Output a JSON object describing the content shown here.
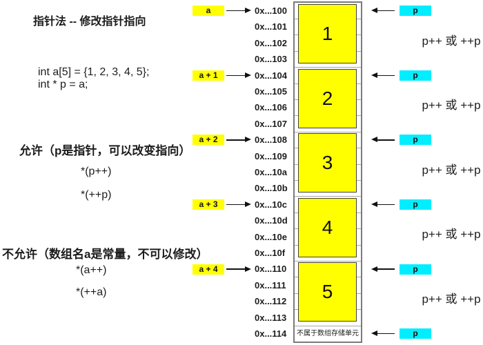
{
  "title": "指针法 -- 修改指针指向",
  "code": {
    "line1": "int  a[5] = {1, 2, 3, 4, 5};",
    "line2": "int * p = a;"
  },
  "allowed": {
    "heading": "允许（p是指针，可以改变指向）",
    "items": [
      "*(p++)",
      "*(++p)"
    ]
  },
  "not_allowed": {
    "heading": "不允许（数组名a是常量，不可以修改）",
    "items": [
      "*(a++)",
      "*(++a)"
    ]
  },
  "array_labels": [
    "a",
    "a + 1",
    "a + 2",
    "a + 3",
    "a + 4"
  ],
  "addresses": [
    "0x...100",
    "0x...101",
    "0x...102",
    "0x...103",
    "0x...104",
    "0x...105",
    "0x...106",
    "0x...107",
    "0x...108",
    "0x...109",
    "0x...10a",
    "0x...10b",
    "0x...10c",
    "0x...10d",
    "0x...10e",
    "0x...10f",
    "0x...110",
    "0x...111",
    "0x...112",
    "0x...113",
    "0x...114"
  ],
  "cell_values": [
    "1",
    "2",
    "3",
    "4",
    "5"
  ],
  "bottom_note": "不属于数组存储单元",
  "pointer_label": "p",
  "pointer_count": 6,
  "increment_label": "p++ 或 ++p",
  "increment_count": 5,
  "colors": {
    "array_highlight": "#ffff00",
    "pointer_highlight": "#00eeff",
    "cell_fill": "#ffff00",
    "cell_border": "#3f3f3f",
    "outer_border": "#7a7a7a",
    "grid_line": "#a6a6a6",
    "arrow": "#111111",
    "text": "#1c1c1c"
  }
}
